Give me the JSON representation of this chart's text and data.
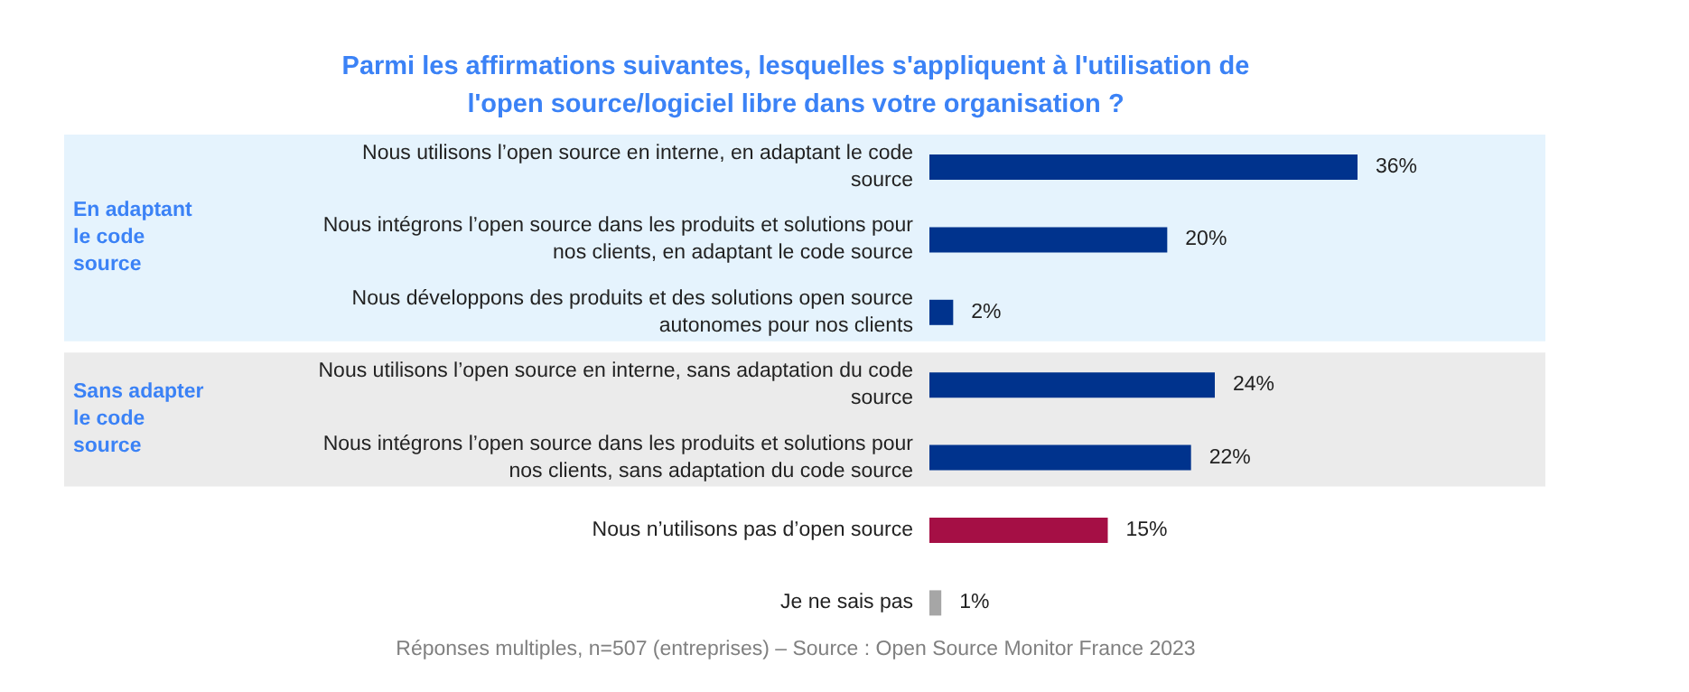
{
  "chart_data": {
    "type": "bar",
    "orientation": "horizontal",
    "title": "Parmi les affirmations suivantes, lesquelles s'appliquent à l'utilisation de l'open source/logiciel libre dans votre organisation ?",
    "categories": [
      "Nous utilisons l’open source en interne, en adaptant le code source",
      "Nous intégrons l’open source dans les produits et solutions pour nos clients, en adaptant le code source",
      "Nous développons des produits et des solutions open source autonomes pour nos clients",
      "Nous utilisons l’open source en interne, sans adaptation du code source",
      "Nous intégrons l’open source dans les produits et solutions pour nos clients, sans adaptation du code source",
      "Nous n’utilisons pas d’open source",
      "Je ne sais pas"
    ],
    "values": [
      36,
      20,
      2,
      24,
      22,
      15,
      1
    ],
    "colors": [
      "#00338d",
      "#00338d",
      "#00338d",
      "#00338d",
      "#00338d",
      "#a50f45",
      "#a6a6a6"
    ],
    "value_labels": [
      "36%",
      "20%",
      "2%",
      "24%",
      "22%",
      "15%",
      "1%"
    ],
    "bands": [
      {
        "axis": "y",
        "from": "Nous utilisons l’open source en interne, en adaptant le code source",
        "to": "Nous développons des produits et des solutions open source autonomes pour nos clients",
        "label": "En adaptant le code source",
        "color": "#e5f3fd"
      },
      {
        "axis": "y",
        "from": "Nous utilisons l’open source en interne, sans adaptation du code source",
        "to": "Nous intégrons l’open source dans les produits et solutions pour nos clients, sans adaptation du code source",
        "label": "Sans adapter le code source",
        "color": "#ebebeb"
      }
    ],
    "annotations": [
      "Réponses multiples, n=507 (entreprises) – Source : Open Source Monitor France 2023"
    ]
  }
}
